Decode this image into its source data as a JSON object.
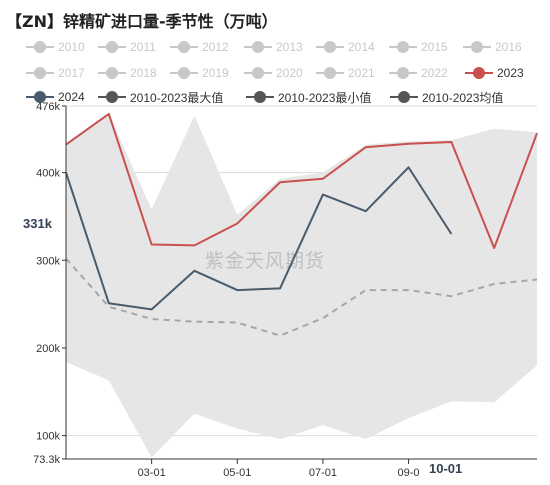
{
  "title": "【ZN】锌精矿进口量-季节性（万吨）",
  "watermark": "紫金天风期货",
  "cursor": {
    "y_label": "331k",
    "x_label": "10-01"
  },
  "colors": {
    "band": "#e6e6e6",
    "inactive": "#c8c8c8",
    "s2023": "#c9504e",
    "s2024": "#4a5b6b",
    "stat": "#555555",
    "avg_dash": "#a6a6a6",
    "axis": "#333333"
  },
  "legend": [
    {
      "name": "2010",
      "active": false
    },
    {
      "name": "2011",
      "active": false
    },
    {
      "name": "2012",
      "active": false
    },
    {
      "name": "2013",
      "active": false
    },
    {
      "name": "2014",
      "active": false
    },
    {
      "name": "2015",
      "active": false
    },
    {
      "name": "2016",
      "active": false
    },
    {
      "name": "2017",
      "active": false
    },
    {
      "name": "2018",
      "active": false
    },
    {
      "name": "2019",
      "active": false
    },
    {
      "name": "2020",
      "active": false
    },
    {
      "name": "2021",
      "active": false
    },
    {
      "name": "2022",
      "active": false
    },
    {
      "name": "2023",
      "active": true
    },
    {
      "name": "2024",
      "active": true
    },
    {
      "name": "2010-2023最大值",
      "active": true
    },
    {
      "name": "2010-2023最小值",
      "active": true
    },
    {
      "name": "2010-2023均值",
      "active": true
    }
  ],
  "chart_data": {
    "type": "line",
    "months": [
      1,
      2,
      3,
      4,
      5,
      6,
      7,
      8,
      9,
      10,
      11,
      12
    ],
    "x_ticks": [
      {
        "label": "03-01",
        "month": 3
      },
      {
        "label": "05-01",
        "month": 5
      },
      {
        "label": "07-01",
        "month": 7
      },
      {
        "label": "09-0",
        "month": 9
      }
    ],
    "y_ticks": [
      {
        "label": "476k",
        "value": 476
      },
      {
        "label": "400k",
        "value": 400
      },
      {
        "label": "300k",
        "value": 300
      },
      {
        "label": "200k",
        "value": 200
      },
      {
        "label": "100k",
        "value": 100
      },
      {
        "label": "73.3k",
        "value": 73.3
      }
    ],
    "ylim": [
      73.3,
      476
    ],
    "grid": true,
    "series": [
      {
        "name": "2010-2023最大值",
        "style": "band-upper",
        "values": [
          432,
          467,
          358,
          465,
          352,
          393,
          400,
          432,
          436,
          437,
          450,
          446
        ]
      },
      {
        "name": "2010-2023最小值",
        "style": "band-lower",
        "values": [
          184,
          163,
          75,
          125,
          108,
          96,
          112,
          96,
          120,
          139,
          138,
          180
        ]
      },
      {
        "name": "2023",
        "style": "line",
        "values": [
          432,
          467,
          318,
          317,
          342,
          389,
          393,
          429,
          433,
          435,
          314,
          445
        ]
      },
      {
        "name": "2024",
        "style": "line",
        "values": [
          400,
          251,
          244,
          288,
          266,
          268,
          375,
          356,
          406,
          330
        ]
      },
      {
        "name": "2010-2023均值",
        "style": "dashed",
        "values": [
          302,
          247,
          233,
          230,
          229,
          214,
          234,
          266,
          266,
          259,
          273,
          278
        ]
      }
    ]
  }
}
